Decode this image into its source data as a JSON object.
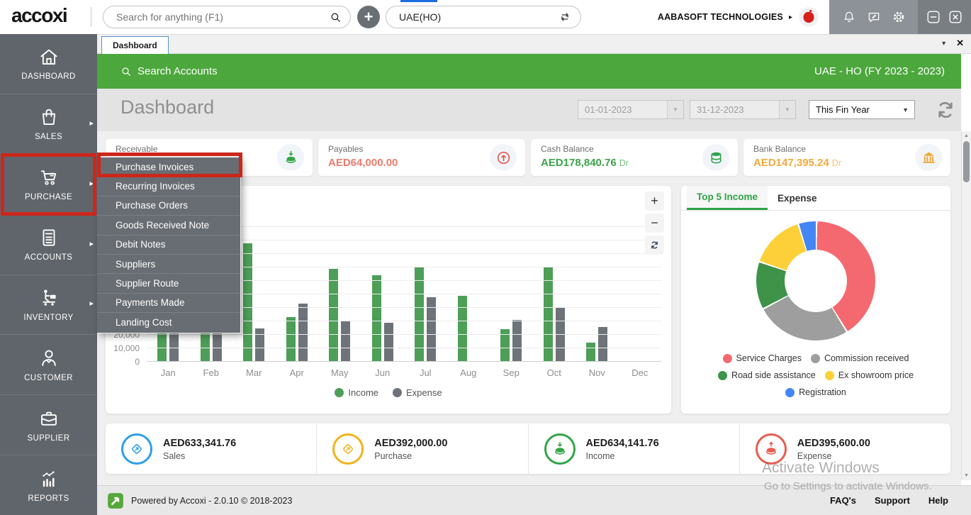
{
  "topbar": {
    "logo": "accoxi",
    "search_placeholder": "Search for anything (F1)",
    "plus_label": "+",
    "branch": "UAE(HO)",
    "company": "AABASOFT TECHNOLOGIES",
    "tray_icons": [
      "bell-icon",
      "chat-icon",
      "gear-icon"
    ],
    "window_icons": [
      "minimize-icon",
      "close-icon"
    ]
  },
  "tabs": {
    "items": [
      {
        "label": "Dashboard",
        "active": true
      }
    ]
  },
  "sidebar": {
    "items": [
      {
        "label": "DASHBOARD",
        "icon": "home-icon",
        "has_submenu": false
      },
      {
        "label": "SALES",
        "icon": "shopping-bag-icon",
        "has_submenu": true
      },
      {
        "label": "PURCHASE",
        "icon": "cart-icon",
        "has_submenu": true,
        "highlighted": true
      },
      {
        "label": "ACCOUNTS",
        "icon": "calculator-icon",
        "has_submenu": true
      },
      {
        "label": "INVENTORY",
        "icon": "inventory-icon",
        "has_submenu": true
      },
      {
        "label": "CUSTOMER",
        "icon": "customer-icon",
        "has_submenu": false
      },
      {
        "label": "SUPPLIER",
        "icon": "briefcase-icon",
        "has_submenu": false
      },
      {
        "label": "REPORTS",
        "icon": "reports-icon",
        "has_submenu": false
      }
    ]
  },
  "purchase_menu": {
    "items": [
      "Purchase Invoices",
      "Recurring Invoices",
      "Purchase Orders",
      "Goods Received Note",
      "Debit Notes",
      "Suppliers",
      "Supplier Route",
      "Payments Made",
      "Landing Cost"
    ],
    "highlighted": "Purchase Invoices"
  },
  "header": {
    "search_label": "Search Accounts",
    "fiscal_label": "UAE - HO (FY 2023 - 2023)"
  },
  "filter_bar": {
    "title": "Dashboard",
    "date_from": "01-01-2023",
    "date_to": "31-12-2023",
    "period": "This Fin Year"
  },
  "summary_cards": [
    {
      "label": "Receivable",
      "value": "",
      "suffix": "",
      "value_color": "#3ba24a",
      "icon": "coins-down-icon",
      "icon_color": "#33a444"
    },
    {
      "label": "Payables",
      "value": "AED64,000.00",
      "suffix": "",
      "value_color": "#ef7b6d",
      "icon": "arrow-up-circle-icon",
      "icon_color": "#e4574b"
    },
    {
      "label": "Cash Balance",
      "value": "AED178,840.76",
      "suffix": "Dr",
      "value_color": "#3ba24a",
      "icon": "coins-stack-icon",
      "icon_color": "#2fa14c"
    },
    {
      "label": "Bank Balance",
      "value": "AED147,395.24",
      "suffix": "Dr",
      "value_color": "#f2a93c",
      "icon": "bank-icon",
      "icon_color": "#efa42b"
    }
  ],
  "chart_data": [
    {
      "type": "bar",
      "title": "",
      "categories": [
        "Jan",
        "Feb",
        "Mar",
        "Apr",
        "May",
        "Jun",
        "Jul",
        "Aug",
        "Sep",
        "Oct",
        "Nov",
        "Dec"
      ],
      "series": [
        {
          "name": "Income",
          "color": "#4d9e56",
          "values": [
            30000,
            29000,
            88000,
            33000,
            69000,
            64000,
            70000,
            49000,
            24000,
            70000,
            14000,
            0
          ]
        },
        {
          "name": "Expense",
          "color": "#6d7378",
          "values": [
            25000,
            26000,
            25000,
            43000,
            30000,
            29000,
            48000,
            0,
            31000,
            40000,
            26000,
            0
          ]
        }
      ],
      "xlabel": "",
      "ylabel": "",
      "ylim": [
        0,
        100000
      ],
      "ytick_step": 10000,
      "grid": true,
      "legend_position": "bottom",
      "note": "Jan-Feb bar tops and y-axis labels above 20,000 are occluded by the open Purchase menu; occluded values estimated from visible bar bases"
    },
    {
      "type": "pie",
      "donut": true,
      "tabs": [
        "Top 5 Income",
        "Expense"
      ],
      "active_tab": "Top 5 Income",
      "labels": [
        "Service Charges",
        "Commission received",
        "Road side assistance",
        "Ex showroom price",
        "Registration"
      ],
      "values_pct": [
        41,
        26,
        13,
        15,
        5
      ],
      "colors": [
        "#F4696F",
        "#9E9E9E",
        "#3E9348",
        "#FDD039",
        "#4387F4"
      ],
      "legend_position": "bottom"
    }
  ],
  "bottom_stats": [
    {
      "value": "AED633,341.76",
      "label": "Sales",
      "icon": "diamond-icon",
      "color": "#2f9fe8"
    },
    {
      "value": "AED392,000.00",
      "label": "Purchase",
      "icon": "diamond-icon",
      "color": "#f0b41c"
    },
    {
      "value": "AED634,141.76",
      "label": "Income",
      "icon": "coins-down-icon",
      "color": "#34a447"
    },
    {
      "value": "AED395,600.00",
      "label": "Expense",
      "icon": "coins-up-icon",
      "color": "#ea5c4f"
    }
  ],
  "footer": {
    "powered_by": "Powered by Accoxi - 2.0.10 © 2018-2023",
    "links": [
      "FAQ's",
      "Support",
      "Help"
    ]
  },
  "watermark": {
    "line1": "Activate Windows",
    "line2": "Go to Settings to activate Windows."
  },
  "colors": {
    "brand_green": "#4CA73C",
    "sidebar_gray": "#60656b",
    "annotation_red": "#ce261b"
  }
}
